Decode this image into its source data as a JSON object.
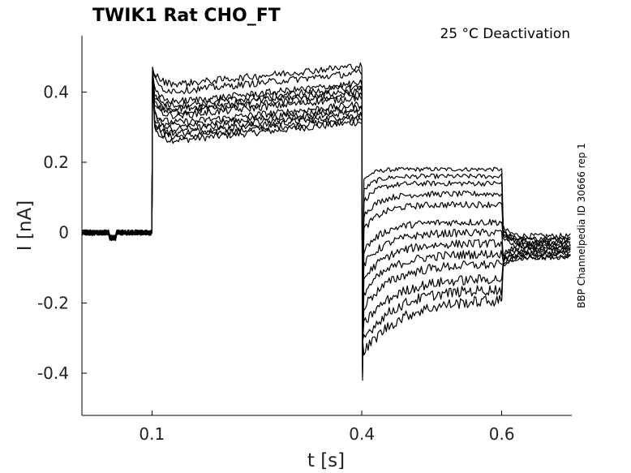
{
  "chart_data": {
    "type": "line",
    "title": "TWIK1  Rat  CHO_FT",
    "annotation": "25 °C  Deactivation",
    "side_label": "BBP Channelpedia ID 30666 rep 1",
    "xlabel": "t [s]",
    "ylabel": "I [nA]",
    "xlim": [
      0.0,
      0.7
    ],
    "ylim": [
      -0.52,
      0.56
    ],
    "xticks": [
      0.1,
      0.4,
      0.6
    ],
    "xtick_labels": [
      "0.1",
      "0.4",
      "0.6"
    ],
    "yticks": [
      0.4,
      0.2,
      0,
      -0.2,
      -0.4
    ],
    "ytick_labels": [
      "0.4",
      "0.2",
      "0",
      "-0.2",
      "-0.4"
    ],
    "grid": false,
    "protocol": {
      "baseline_window": [
        0.0,
        0.1
      ],
      "prepulse_window": [
        0.1,
        0.4
      ],
      "test_window": [
        0.4,
        0.6
      ],
      "tail_window": [
        0.6,
        0.7
      ]
    },
    "series_description": "13 overlaid current traces",
    "traces": [
      {
        "prepulse_level": 0.29,
        "test_level": 0.18,
        "tail_level": -0.01
      },
      {
        "prepulse_level": 0.3,
        "test_level": 0.16,
        "tail_level": -0.02
      },
      {
        "prepulse_level": 0.31,
        "test_level": 0.14,
        "tail_level": -0.02
      },
      {
        "prepulse_level": 0.32,
        "test_level": 0.11,
        "tail_level": -0.03
      },
      {
        "prepulse_level": 0.33,
        "test_level": 0.08,
        "tail_level": -0.03
      },
      {
        "prepulse_level": 0.34,
        "test_level": 0.03,
        "tail_level": -0.04
      },
      {
        "prepulse_level": 0.36,
        "test_level": 0.0,
        "tail_level": -0.04
      },
      {
        "prepulse_level": 0.37,
        "test_level": -0.03,
        "tail_level": -0.05
      },
      {
        "prepulse_level": 0.38,
        "test_level": -0.06,
        "tail_level": -0.05
      },
      {
        "prepulse_level": 0.39,
        "test_level": -0.09,
        "tail_level": -0.06
      },
      {
        "prepulse_level": 0.4,
        "test_level": -0.13,
        "tail_level": -0.06
      },
      {
        "prepulse_level": 0.43,
        "test_level": -0.16,
        "tail_level": -0.07
      },
      {
        "prepulse_level": 0.45,
        "test_level": -0.19,
        "tail_level": -0.07
      }
    ]
  }
}
